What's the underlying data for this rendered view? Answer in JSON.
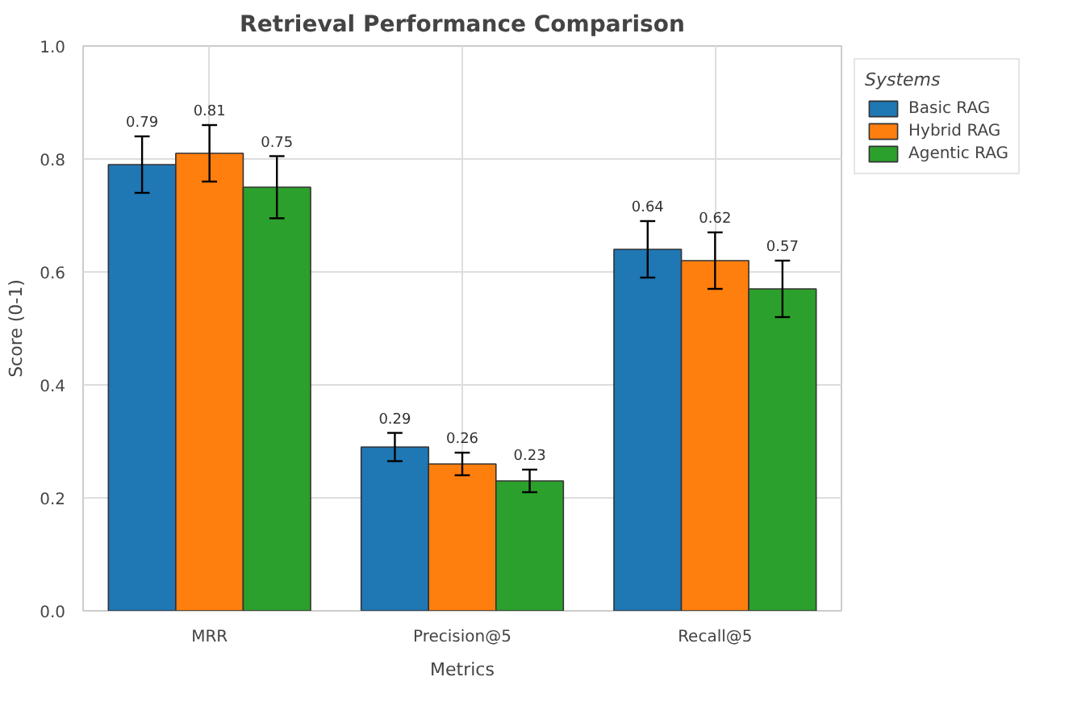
{
  "chart_data": {
    "type": "bar",
    "title": "Retrieval Performance Comparison",
    "xlabel": "Metrics",
    "ylabel": "Score (0-1)",
    "legend_title": "Systems",
    "categories": [
      "MRR",
      "Precision@5",
      "Recall@5"
    ],
    "series": [
      {
        "name": "Basic RAG",
        "color": "#1f77b4",
        "values": [
          0.79,
          0.29,
          0.64
        ],
        "errors": [
          0.05,
          0.025,
          0.05
        ]
      },
      {
        "name": "Hybrid RAG",
        "color": "#ff7f0e",
        "values": [
          0.81,
          0.26,
          0.62
        ],
        "errors": [
          0.05,
          0.02,
          0.05
        ]
      },
      {
        "name": "Agentic RAG",
        "color": "#2ca02c",
        "values": [
          0.75,
          0.23,
          0.57
        ],
        "errors": [
          0.055,
          0.02,
          0.05
        ]
      }
    ],
    "ylim": [
      0,
      1
    ],
    "yticks": [
      {
        "value": 0,
        "label": "0.0"
      },
      {
        "value": 0.2,
        "label": "0.2"
      },
      {
        "value": 0.4,
        "label": "0.4"
      },
      {
        "value": 0.6,
        "label": "0.6"
      },
      {
        "value": 0.8,
        "label": "0.8"
      },
      {
        "value": 1,
        "label": "1.0"
      }
    ],
    "data_labels": true,
    "grid": true,
    "legend": "top right"
  }
}
